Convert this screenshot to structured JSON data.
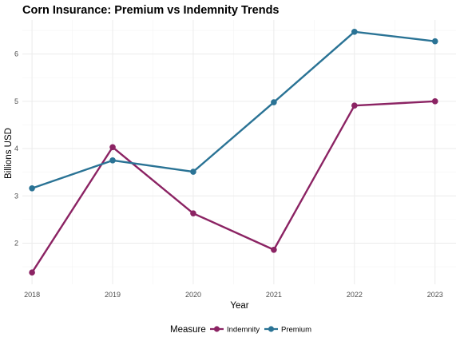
{
  "chart_data": {
    "type": "line",
    "title": "Corn Insurance: Premium vs Indemnity Trends",
    "xlabel": "Year",
    "ylabel": "Billions USD",
    "x": [
      2018,
      2019,
      2020,
      2021,
      2022,
      2023
    ],
    "x_ticks": [
      "2018",
      "2019",
      "2020",
      "2021",
      "2022",
      "2023"
    ],
    "y_ticks": [
      2,
      3,
      4,
      5,
      6
    ],
    "xlim": [
      2017.88,
      2023.26
    ],
    "ylim": [
      1.13,
      6.72
    ],
    "grid": true,
    "legend": {
      "title": "Measure",
      "position": "bottom"
    },
    "series": [
      {
        "name": "Indemnity",
        "color": "#8B2363",
        "values": [
          1.38,
          4.03,
          2.63,
          1.86,
          4.91,
          5.0
        ]
      },
      {
        "name": "Premium",
        "color": "#2A7395",
        "values": [
          3.16,
          3.75,
          3.51,
          4.98,
          6.47,
          6.27
        ]
      }
    ]
  }
}
